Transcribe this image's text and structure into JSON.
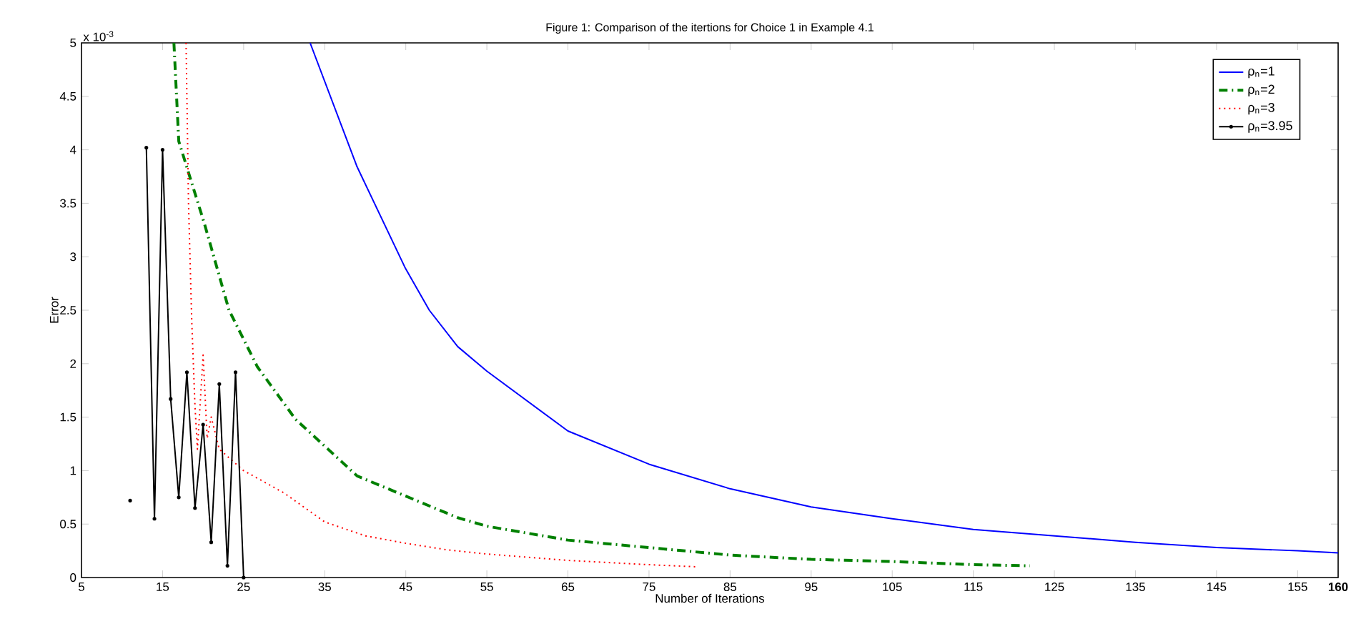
{
  "chart_data": {
    "type": "line",
    "title": "Figure 1: Comparison of the itertions for Choice 1 in Example 4.1",
    "xlabel": "Number of Iterations",
    "ylabel": "Error",
    "annotations": [
      "x 10$^{-3}$"
    ],
    "xlim": [
      5,
      160
    ],
    "xticks": [
      5,
      15,
      25,
      35,
      45,
      55,
      65,
      75,
      85,
      95,
      105,
      115,
      125,
      135,
      145,
      155,
      {
        "value": 160,
        "label": "**160**"
      }
    ],
    "ylim": [
      0,
      5
    ],
    "yticks": [
      0,
      0.5,
      1,
      1.5,
      2,
      2.5,
      3,
      3.5,
      4,
      4.5,
      5
    ],
    "legend": "top right",
    "series": [
      {
        "name": "ρ$_{n}$=1",
        "color": "#0000ff",
        "line_style": "solid",
        "x": [
          33.2,
          39,
          44.9,
          47.9,
          51.4,
          55,
          65,
          75,
          85,
          95,
          105,
          115,
          125,
          135,
          145,
          155,
          160
        ],
        "values": [
          5,
          3.84,
          2.9,
          2.5,
          2.16,
          1.93,
          1.37,
          1.06,
          0.83,
          0.66,
          0.55,
          0.45,
          0.39,
          0.33,
          0.28,
          0.25,
          0.23
        ]
      },
      {
        "name": "ρ$_{n}$=2",
        "color": "#008000",
        "line_style": "dashed",
        "x": [
          16.4,
          17,
          20.2,
          23.2,
          26.7,
          31.4,
          39,
          51.4,
          55,
          65,
          75,
          85,
          95,
          105,
          115,
          122
        ],
        "values": [
          5,
          4.08,
          3.3,
          2.5,
          1.97,
          1.48,
          0.95,
          0.56,
          0.48,
          0.35,
          0.28,
          0.21,
          0.17,
          0.15,
          0.12,
          0.11
        ]
      },
      {
        "name": "ρ$_{n}$=3",
        "color": "#ff0000",
        "line_style": "dotted",
        "x": [
          17.9,
          18.2,
          18.6,
          19,
          19.3,
          20,
          20.5,
          21,
          22,
          25,
          30,
          35,
          40,
          45,
          50,
          55,
          65,
          75,
          81
        ],
        "values": [
          5,
          3.5,
          2.4,
          1.6,
          1.2,
          2.08,
          1.3,
          1.5,
          1.2,
          1.0,
          0.79,
          0.52,
          0.39,
          0.32,
          0.26,
          0.22,
          0.16,
          0.12,
          0.1
        ]
      },
      {
        "name": "ρ$_{n}$=3.95",
        "color": "#000000",
        "line_style": "solid",
        "marker": "circle",
        "x": [
          11,
          12,
          13,
          14,
          15,
          16,
          17,
          18,
          19,
          20,
          21,
          22,
          23,
          24,
          25
        ],
        "values": [
          0.72,
          null,
          4.02,
          0.55,
          4.0,
          1.67,
          0.75,
          1.92,
          0.65,
          1.43,
          0.33,
          1.81,
          0.11,
          1.92,
          0
        ]
      }
    ]
  }
}
